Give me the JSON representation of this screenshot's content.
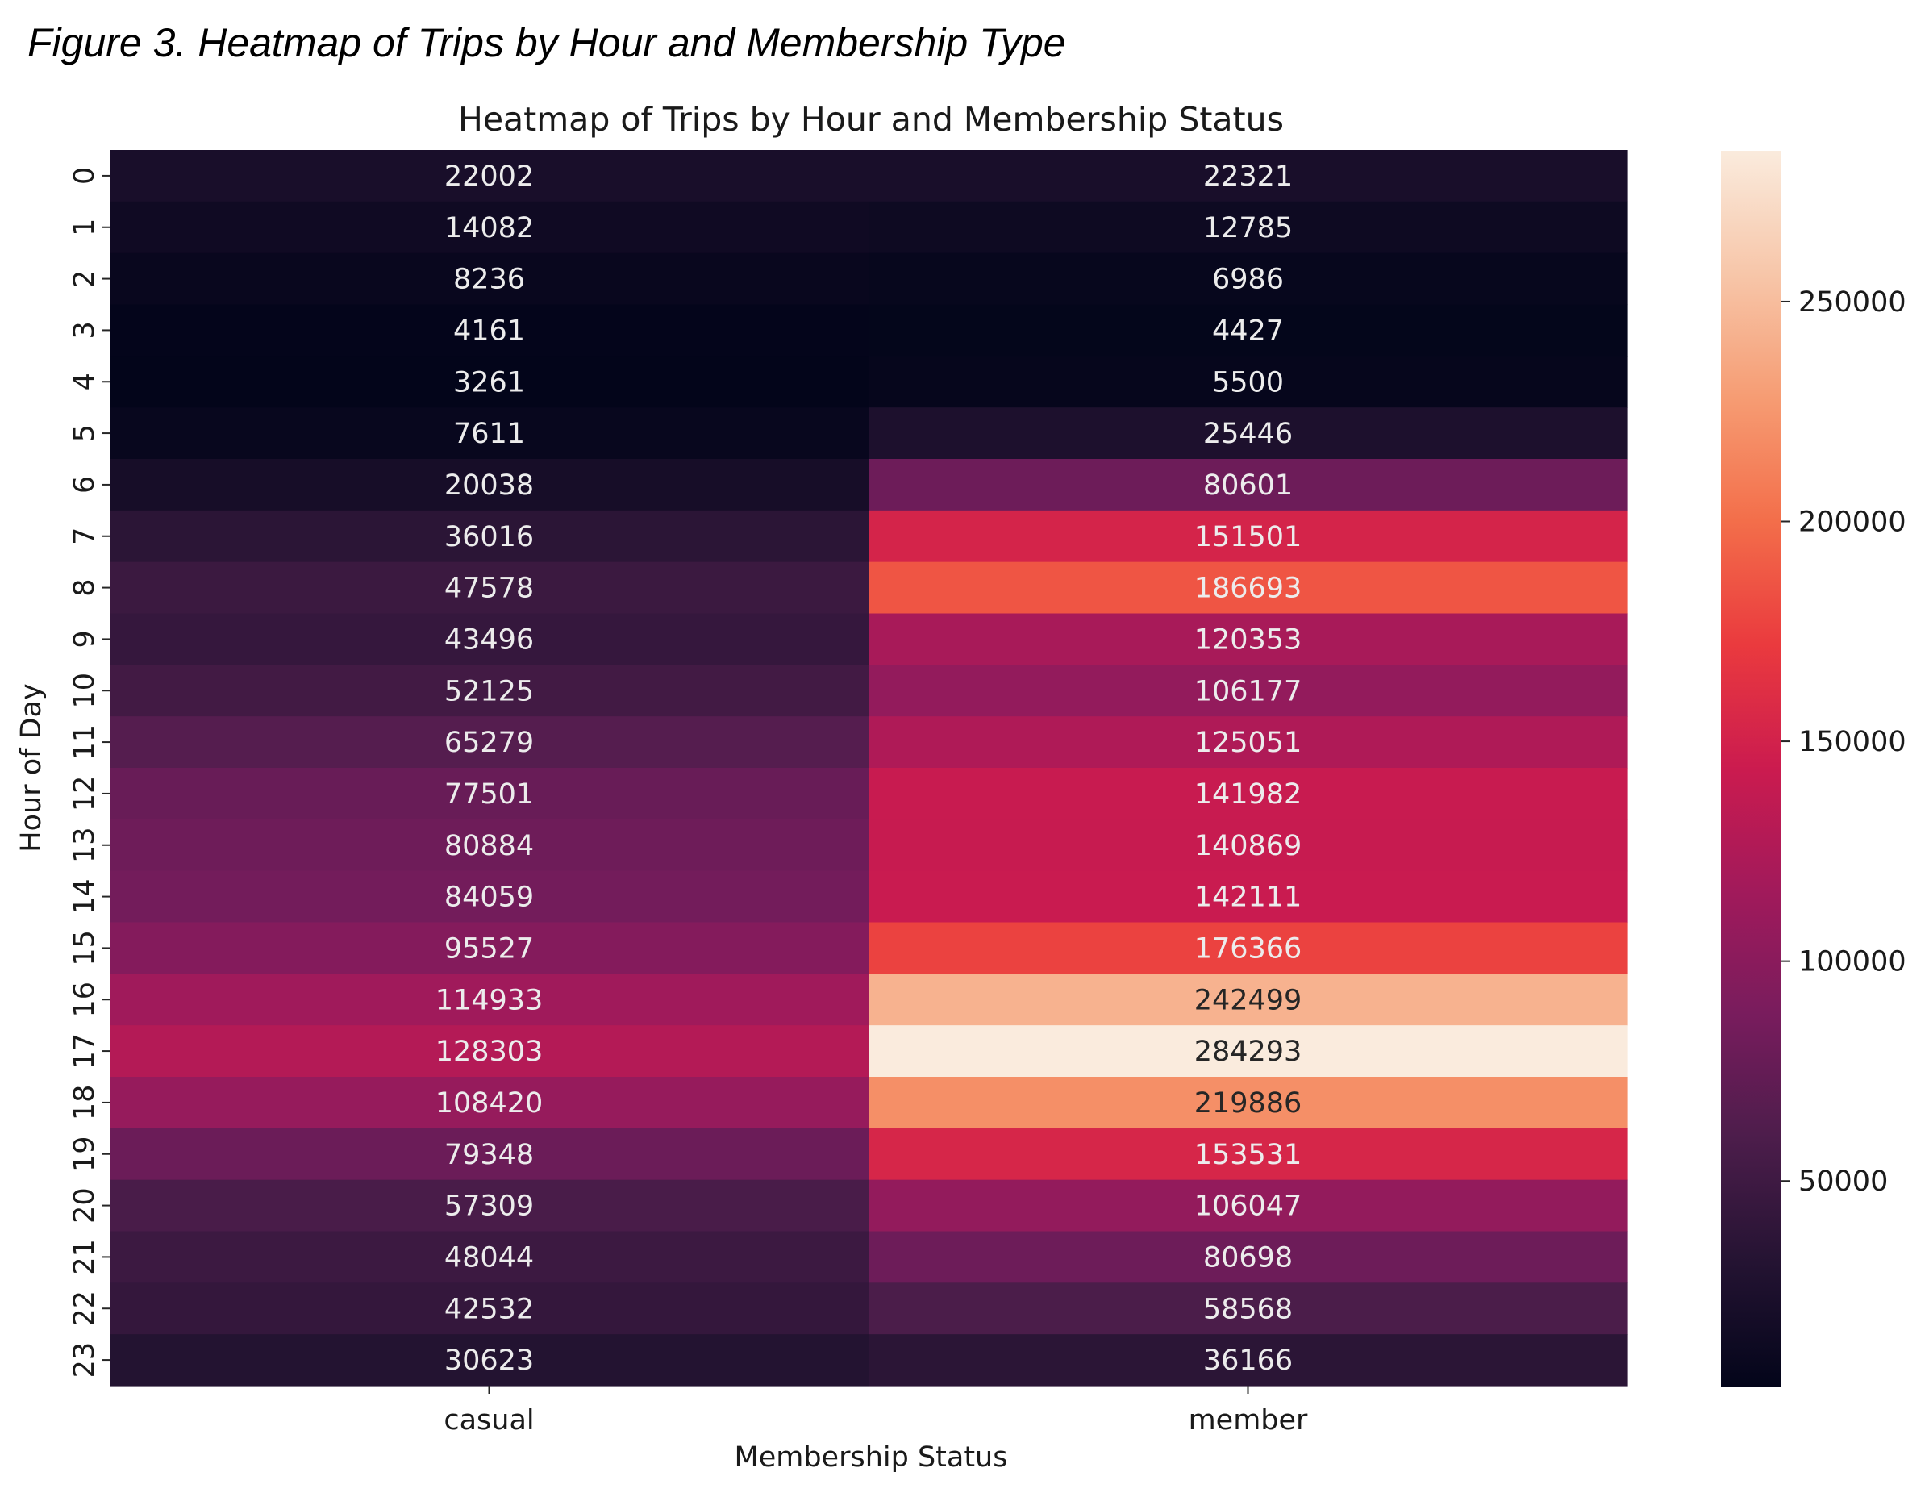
{
  "figure_caption": "Figure 3. Heatmap of Trips by Hour and Membership Type",
  "chart_data": {
    "type": "heatmap",
    "title": "Heatmap of Trips by Hour and Membership Status",
    "xlabel": "Membership Status",
    "ylabel": "Hour of Day",
    "x_categories": [
      "casual",
      "member"
    ],
    "y_categories": [
      "0",
      "1",
      "2",
      "3",
      "4",
      "5",
      "6",
      "7",
      "8",
      "9",
      "10",
      "11",
      "12",
      "13",
      "14",
      "15",
      "16",
      "17",
      "18",
      "19",
      "20",
      "21",
      "22",
      "23"
    ],
    "values": [
      [
        22002,
        22321
      ],
      [
        14082,
        12785
      ],
      [
        8236,
        6986
      ],
      [
        4161,
        4427
      ],
      [
        3261,
        5500
      ],
      [
        7611,
        25446
      ],
      [
        20038,
        80601
      ],
      [
        36016,
        151501
      ],
      [
        47578,
        186693
      ],
      [
        43496,
        120353
      ],
      [
        52125,
        106177
      ],
      [
        65279,
        125051
      ],
      [
        77501,
        141982
      ],
      [
        80884,
        140869
      ],
      [
        84059,
        142111
      ],
      [
        95527,
        176366
      ],
      [
        114933,
        242499
      ],
      [
        128303,
        284293
      ],
      [
        108420,
        219886
      ],
      [
        79348,
        153531
      ],
      [
        57309,
        106047
      ],
      [
        48044,
        80698
      ],
      [
        42532,
        58568
      ],
      [
        30623,
        36166
      ]
    ],
    "colorbar": {
      "min": 3261,
      "max": 284293,
      "ticks": [
        50000,
        100000,
        150000,
        200000,
        250000
      ],
      "tick_labels": [
        "50000",
        "100000",
        "150000",
        "200000",
        "250000"
      ],
      "colormap": "rocket",
      "stops": [
        "#03051a",
        "#241332",
        "#4c1d4b",
        "#781c5d",
        "#a11a5b",
        "#cb1b4f",
        "#ea3a3e",
        "#f36e4a",
        "#f69c73",
        "#f7c6a9",
        "#faebdd"
      ]
    }
  }
}
